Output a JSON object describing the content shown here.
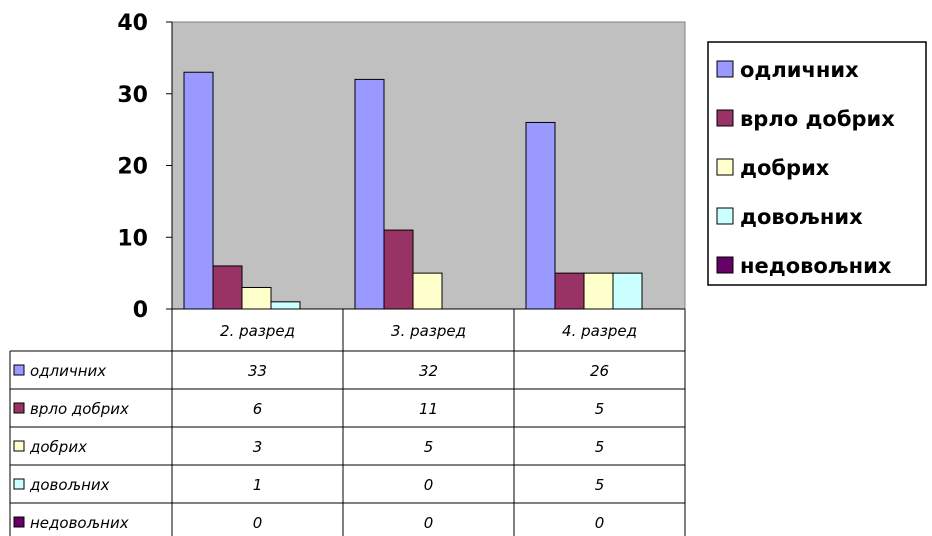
{
  "chart_data": {
    "type": "bar",
    "categories": [
      "2. разред",
      "3. разред",
      "4. разред"
    ],
    "series": [
      {
        "name": "одличних",
        "values": [
          33,
          32,
          26
        ],
        "color": "#9999ff"
      },
      {
        "name": "врло добрих",
        "values": [
          6,
          11,
          5
        ],
        "color": "#993366"
      },
      {
        "name": "добрих",
        "values": [
          3,
          5,
          5
        ],
        "color": "#ffffcc"
      },
      {
        "name": "довољних",
        "values": [
          1,
          0,
          5
        ],
        "color": "#ccffff"
      },
      {
        "name": "недовољних",
        "values": [
          0,
          0,
          0
        ],
        "color": "#660066"
      }
    ],
    "ylim": [
      0,
      40
    ],
    "yticks": [
      0,
      10,
      20,
      30,
      40
    ],
    "grid": false,
    "plot_background": "#c0c0c0",
    "legend_position": "right",
    "data_table": true
  }
}
